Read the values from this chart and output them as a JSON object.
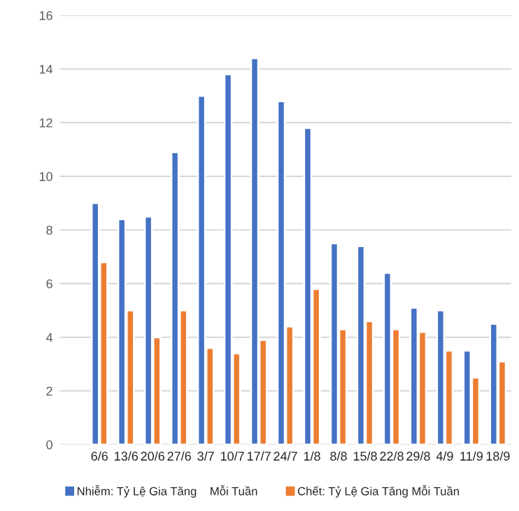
{
  "chart_data": {
    "type": "bar",
    "categories": [
      null,
      "6/6",
      "13/6",
      "20/6",
      "27/6",
      "3/7",
      "10/7",
      "17/7",
      "24/7",
      "1/8",
      "8/8",
      "15/8",
      "22/8",
      "29/8",
      "4/9",
      "11/9",
      "18/9"
    ],
    "series": [
      {
        "name": "Nhiễm: Tỷ Lệ Gia Tăng    Mỗi Tuần",
        "color": "#4472c4",
        "values": [
          null,
          9.0,
          8.4,
          8.5,
          10.9,
          13.0,
          13.8,
          14.4,
          12.8,
          11.8,
          7.5,
          7.4,
          6.4,
          5.1,
          5.0,
          3.5,
          4.5
        ]
      },
      {
        "name": "Chết: Tỷ Lệ Gia Tăng Mỗi Tuần",
        "color": "#ed7d31",
        "values": [
          null,
          6.8,
          5.0,
          4.0,
          5.0,
          3.6,
          3.4,
          3.9,
          4.4,
          5.8,
          4.3,
          4.6,
          4.3,
          4.2,
          3.5,
          2.5,
          3.1
        ]
      }
    ],
    "ylim": [
      0,
      16
    ],
    "yticks": [
      0,
      2,
      4,
      6,
      8,
      10,
      12,
      14,
      16
    ],
    "grid": "y",
    "legend": "bottom"
  }
}
